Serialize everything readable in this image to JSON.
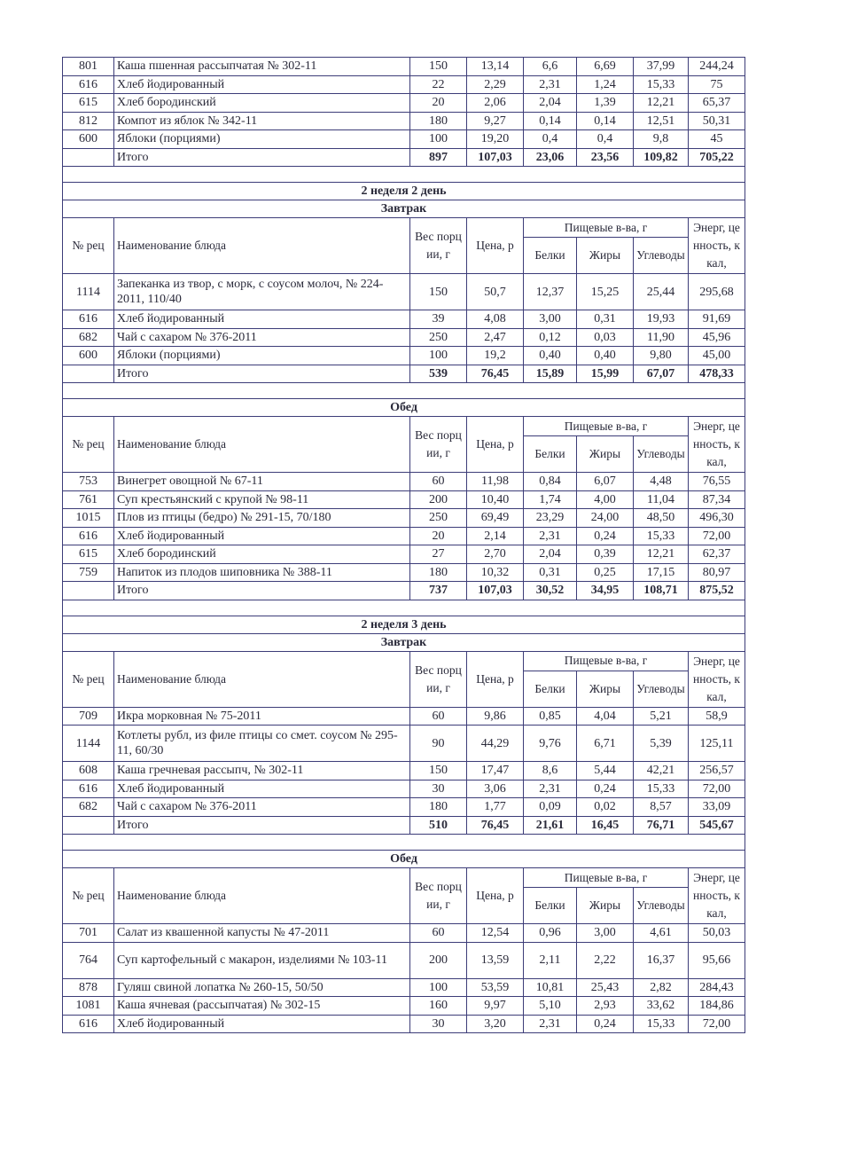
{
  "column_headers": {
    "code": "№ рец",
    "name": "Наименование блюда",
    "weight": "Вес порции, г",
    "price": "Цена, р",
    "nutrients": "Пищевые в-ва, г",
    "protein": "Белки",
    "fat": "Жиры",
    "carbs": "Углеводы",
    "energy": "Энерг, ценность, ккал,"
  },
  "blocks": [
    {
      "day": null,
      "meal": null,
      "show_header": false,
      "rows": [
        [
          "801",
          "Каша пшенная рассыпчатая № 302-11",
          "150",
          "13,14",
          "6,6",
          "6,69",
          "37,99",
          "244,24"
        ],
        [
          "616",
          "Хлеб йодированный",
          "22",
          "2,29",
          "2,31",
          "1,24",
          "15,33",
          "75"
        ],
        [
          "615",
          "Хлеб бородинский",
          "20",
          "2,06",
          "2,04",
          "1,39",
          "12,21",
          "65,37"
        ],
        [
          "812",
          "Компот из яблок № 342-11",
          "180",
          "9,27",
          "0,14",
          "0,14",
          "12,51",
          "50,31"
        ],
        [
          "600",
          "Яблоки (порциями)",
          "100",
          "19,20",
          "0,4",
          "0,4",
          "9,8",
          "45"
        ]
      ],
      "total": [
        "",
        "Итого",
        "897",
        "107,03",
        "23,06",
        "23,56",
        "109,82",
        "705,22"
      ]
    },
    {
      "day": "2 неделя 2 день",
      "meal": "Завтрак",
      "show_header": true,
      "rows": [
        [
          "1114",
          "Запеканка из твор, с морк, с соусом молоч, № 224-2011, 110/40",
          "150",
          "50,7",
          "12,37",
          "15,25",
          "25,44",
          "295,68"
        ],
        [
          "616",
          "Хлеб йодированный",
          "39",
          "4,08",
          "3,00",
          "0,31",
          "19,93",
          "91,69"
        ],
        [
          "682",
          "Чай с сахаром № 376-2011",
          "250",
          "2,47",
          "0,12",
          "0,03",
          "11,90",
          "45,96"
        ],
        [
          "600",
          "Яблоки (порциями)",
          "100",
          "19,2",
          "0,40",
          "0,40",
          "9,80",
          "45,00"
        ]
      ],
      "total": [
        "",
        "Итого",
        "539",
        "76,45",
        "15,89",
        "15,99",
        "67,07",
        "478,33"
      ]
    },
    {
      "day": null,
      "meal": "Обед",
      "show_header": true,
      "rows": [
        [
          "753",
          "Винегрет овощной № 67-11",
          "60",
          "11,98",
          "0,84",
          "6,07",
          "4,48",
          "76,55"
        ],
        [
          "761",
          "Суп крестьянский с крупой № 98-11",
          "200",
          "10,40",
          "1,74",
          "4,00",
          "11,04",
          "87,34"
        ],
        [
          "1015",
          "Плов из птицы (бедро)  № 291-15, 70/180",
          "250",
          "69,49",
          "23,29",
          "24,00",
          "48,50",
          "496,30"
        ],
        [
          "616",
          "Хлеб йодированный",
          "20",
          "2,14",
          "2,31",
          "0,24",
          "15,33",
          "72,00"
        ],
        [
          "615",
          "Хлеб бородинский",
          "27",
          "2,70",
          "2,04",
          "0,39",
          "12,21",
          "62,37"
        ],
        [
          "759",
          "Напиток из плодов шиповника № 388-11",
          "180",
          "10,32",
          "0,31",
          "0,25",
          "17,15",
          "80,97"
        ]
      ],
      "total": [
        "",
        "Итого",
        "737",
        "107,03",
        "30,52",
        "34,95",
        "108,71",
        "875,52"
      ]
    },
    {
      "day": "2 неделя 3 день",
      "meal": "Завтрак",
      "show_header": true,
      "rows": [
        [
          "709",
          "Икра морковная № 75-2011",
          "60",
          "9,86",
          "0,85",
          "4,04",
          "5,21",
          "58,9"
        ],
        [
          "1144",
          "Котлеты рубл, из филе птицы со смет. соусом № 295-11, 60/30",
          "90",
          "44,29",
          "9,76",
          "6,71",
          "5,39",
          "125,11"
        ],
        [
          "608",
          "Каша гречневая рассыпч, № 302-11",
          "150",
          "17,47",
          "8,6",
          "5,44",
          "42,21",
          "256,57"
        ],
        [
          "616",
          "Хлеб йодированный",
          "30",
          "3,06",
          "2,31",
          "0,24",
          "15,33",
          "72,00"
        ],
        [
          "682",
          "Чай с сахаром № 376-2011",
          "180",
          "1,77",
          "0,09",
          "0,02",
          "8,57",
          "33,09"
        ]
      ],
      "total": [
        "",
        "Итого",
        "510",
        "76,45",
        "21,61",
        "16,45",
        "76,71",
        "545,67"
      ]
    },
    {
      "day": null,
      "meal": "Обед",
      "show_header": true,
      "rows": [
        [
          "701",
          "Салат из квашенной капусты № 47-2011",
          "60",
          "12,54",
          "0,96",
          "3,00",
          "4,61",
          "50,03"
        ],
        [
          "764",
          "Суп картофельный с макарон, изделиями № 103-11",
          "200",
          "13,59",
          "2,11",
          "2,22",
          "16,37",
          "95,66"
        ],
        [
          "878",
          "Гуляш свиной лопатка № 260-15,  50/50",
          "100",
          "53,59",
          "10,81",
          "25,43",
          "2,82",
          "284,43"
        ],
        [
          "1081",
          "Каша ячневая (рассыпчатая) № 302-15",
          "160",
          "9,97",
          "5,10",
          "2,93",
          "33,62",
          "184,86"
        ],
        [
          "616",
          "Хлеб йодированный",
          "30",
          "3,20",
          "2,31",
          "0,24",
          "15,33",
          "72,00"
        ]
      ],
      "total": null
    }
  ]
}
